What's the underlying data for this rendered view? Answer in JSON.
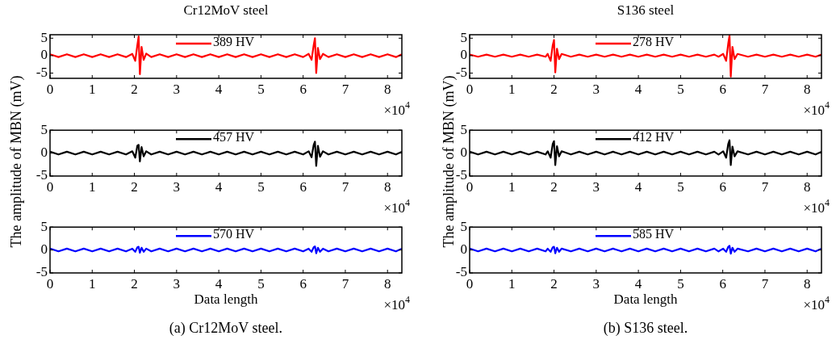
{
  "chart_data": [
    {
      "type": "line",
      "title": "Cr12MoV steel",
      "x": [
        0,
        0.2,
        0.4,
        0.6,
        0.8,
        1,
        1.2,
        1.4,
        1.6,
        1.8,
        1.95,
        2.02,
        2.07,
        2.1,
        2.13,
        2.17,
        2.22,
        2.28,
        2.4,
        2.6,
        2.8,
        3,
        3.2,
        3.4,
        3.6,
        3.8,
        4,
        4.2,
        4.4,
        4.6,
        4.8,
        5,
        5.2,
        5.4,
        5.6,
        5.8,
        6,
        6.13,
        6.2,
        6.25,
        6.28,
        6.31,
        6.35,
        6.4,
        6.47,
        6.6,
        6.8,
        7,
        7.2,
        7.4,
        7.6,
        7.8,
        8,
        8.2,
        8.34
      ],
      "xlim": [
        0,
        8.34
      ],
      "xticks": [
        0,
        1,
        2,
        3,
        4,
        5,
        6,
        7,
        8
      ],
      "ylim": [
        -6.5,
        6
      ],
      "yticks": [
        -5,
        0,
        5
      ],
      "legend": "top",
      "series": [
        {
          "name": "389 HV",
          "color": "#ff0000",
          "values": [
            0.4,
            -0.4,
            0.4,
            -0.4,
            0.4,
            -0.4,
            0.4,
            -0.4,
            0.4,
            -0.4,
            0.5,
            -1.5,
            3,
            5.5,
            -5.3,
            2.5,
            -1.2,
            0.6,
            -0.4,
            0.4,
            -0.4,
            0.4,
            -0.4,
            0.4,
            -0.4,
            0.4,
            -0.4,
            0.4,
            -0.4,
            0.4,
            -0.4,
            0.4,
            -0.4,
            0.4,
            -0.4,
            0.4,
            -0.4,
            0.5,
            -1.2,
            3,
            5,
            -5,
            2.2,
            -1,
            0.5,
            -0.4,
            0.4,
            -0.4,
            0.4,
            -0.4,
            0.4,
            -0.4,
            0.4,
            -0.4,
            0.4
          ]
        }
      ],
      "annotations": [
        "×10$^{4}$"
      ]
    },
    {
      "type": "line",
      "ylabel": "The amplitude of MBN (mV)",
      "x": [
        0,
        0.2,
        0.4,
        0.6,
        0.8,
        1,
        1.2,
        1.4,
        1.6,
        1.8,
        1.95,
        2.02,
        2.07,
        2.1,
        2.13,
        2.17,
        2.22,
        2.28,
        2.4,
        2.6,
        2.8,
        3,
        3.2,
        3.4,
        3.6,
        3.8,
        4,
        4.2,
        4.4,
        4.6,
        4.8,
        5,
        5.2,
        5.4,
        5.6,
        5.8,
        6,
        6.13,
        6.2,
        6.25,
        6.28,
        6.31,
        6.35,
        6.4,
        6.47,
        6.6,
        6.8,
        7,
        7.2,
        7.4,
        7.6,
        7.8,
        8,
        8.2,
        8.34
      ],
      "xlim": [
        0,
        8.34
      ],
      "xticks": [
        0,
        1,
        2,
        3,
        4,
        5,
        6,
        7,
        8
      ],
      "ylim": [
        -5,
        5
      ],
      "yticks": [
        -5,
        0,
        5
      ],
      "legend": "top",
      "series": [
        {
          "name": "457 HV",
          "color": "#000000",
          "values": [
            0.3,
            -0.3,
            0.3,
            -0.3,
            0.3,
            -0.3,
            0.3,
            -0.3,
            0.3,
            -0.3,
            0.4,
            -1,
            1.6,
            1.8,
            -1.8,
            1.3,
            -0.7,
            0.4,
            -0.3,
            0.3,
            -0.3,
            0.3,
            -0.3,
            0.3,
            -0.3,
            0.3,
            -0.3,
            0.3,
            -0.3,
            0.3,
            -0.3,
            0.3,
            -0.3,
            0.3,
            -0.3,
            0.3,
            -0.3,
            0.4,
            -0.9,
            1.8,
            2.5,
            -2.8,
            1.6,
            -0.8,
            0.4,
            -0.3,
            0.3,
            -0.3,
            0.3,
            -0.3,
            0.3,
            -0.3,
            0.3,
            -0.3,
            0.3
          ]
        }
      ],
      "annotations": [
        "×10$^{4}$"
      ]
    },
    {
      "type": "line",
      "xlabel": "Data length",
      "x": [
        0,
        0.2,
        0.4,
        0.6,
        0.8,
        1,
        1.2,
        1.4,
        1.6,
        1.8,
        1.95,
        2.02,
        2.07,
        2.1,
        2.13,
        2.17,
        2.22,
        2.28,
        2.4,
        2.6,
        2.8,
        3,
        3.2,
        3.4,
        3.6,
        3.8,
        4,
        4.2,
        4.4,
        4.6,
        4.8,
        5,
        5.2,
        5.4,
        5.6,
        5.8,
        6,
        6.13,
        6.2,
        6.25,
        6.28,
        6.31,
        6.35,
        6.4,
        6.47,
        6.6,
        6.8,
        7,
        7.2,
        7.4,
        7.6,
        7.8,
        8,
        8.2,
        8.34
      ],
      "xlim": [
        0,
        8.34
      ],
      "xticks": [
        0,
        1,
        2,
        3,
        4,
        5,
        6,
        7,
        8
      ],
      "ylim": [
        -5,
        5
      ],
      "yticks": [
        -5,
        0,
        5
      ],
      "legend": "top",
      "series": [
        {
          "name": "570 HV",
          "color": "#0000ff",
          "values": [
            0.3,
            -0.3,
            0.3,
            -0.3,
            0.3,
            -0.3,
            0.3,
            -0.3,
            0.3,
            -0.3,
            0.3,
            -0.4,
            0.6,
            0.7,
            -0.6,
            0.5,
            -0.4,
            0.3,
            -0.3,
            0.3,
            -0.3,
            0.3,
            -0.3,
            0.3,
            -0.3,
            0.3,
            -0.3,
            0.3,
            -0.3,
            0.3,
            -0.3,
            0.3,
            -0.3,
            0.3,
            -0.3,
            0.3,
            -0.3,
            0.3,
            -0.4,
            0.6,
            0.8,
            -0.7,
            0.5,
            -0.4,
            0.3,
            -0.3,
            0.3,
            -0.3,
            0.3,
            -0.3,
            0.3,
            -0.3,
            0.3,
            -0.3,
            0.3
          ]
        }
      ],
      "annotations": [
        "×10$^{4}$",
        "(a) Cr12MoV steel."
      ]
    },
    {
      "type": "line",
      "title": "S136 steel",
      "x": [
        0,
        0.2,
        0.4,
        0.6,
        0.8,
        1,
        1.2,
        1.4,
        1.6,
        1.8,
        1.85,
        1.92,
        1.97,
        2,
        2.03,
        2.07,
        2.12,
        2.18,
        2.4,
        2.6,
        2.8,
        3,
        3.2,
        3.4,
        3.6,
        3.8,
        4,
        4.2,
        4.4,
        4.6,
        4.8,
        5,
        5.2,
        5.4,
        5.6,
        5.8,
        5.9,
        6.01,
        6.08,
        6.13,
        6.16,
        6.19,
        6.23,
        6.28,
        6.35,
        6.6,
        6.8,
        7,
        7.2,
        7.4,
        7.6,
        7.8,
        8,
        8.2,
        8.34
      ],
      "xlim": [
        0,
        8.34
      ],
      "xticks": [
        0,
        1,
        2,
        3,
        4,
        5,
        6,
        7,
        8
      ],
      "ylim": [
        -6.5,
        6
      ],
      "yticks": [
        -5,
        0,
        5
      ],
      "legend": "top",
      "series": [
        {
          "name": "278 HV",
          "color": "#ff0000",
          "values": [
            0.3,
            -0.3,
            0.3,
            -0.3,
            0.3,
            -0.3,
            0.3,
            -0.3,
            0.3,
            -0.3,
            0.5,
            -1.5,
            3,
            4.5,
            -4.8,
            2,
            -1,
            0.5,
            -0.3,
            0.3,
            -0.3,
            0.3,
            -0.3,
            0.3,
            -0.3,
            0.3,
            -0.3,
            0.3,
            -0.3,
            0.3,
            -0.3,
            0.3,
            -0.3,
            0.3,
            -0.3,
            0.3,
            -0.3,
            0.5,
            -1.5,
            3.5,
            5.8,
            -6,
            2.5,
            -1,
            0.5,
            -0.3,
            0.3,
            -0.3,
            0.3,
            -0.3,
            0.3,
            -0.3,
            0.3,
            -0.3,
            0.3
          ]
        }
      ],
      "annotations": [
        "×10$^{4}$"
      ]
    },
    {
      "type": "line",
      "ylabel": "The amplitude of MBN (mV)",
      "x": [
        0,
        0.2,
        0.4,
        0.6,
        0.8,
        1,
        1.2,
        1.4,
        1.6,
        1.8,
        1.85,
        1.92,
        1.97,
        2,
        2.03,
        2.07,
        2.12,
        2.18,
        2.4,
        2.6,
        2.8,
        3,
        3.2,
        3.4,
        3.6,
        3.8,
        4,
        4.2,
        4.4,
        4.6,
        4.8,
        5,
        5.2,
        5.4,
        5.6,
        5.8,
        5.9,
        6.01,
        6.08,
        6.13,
        6.16,
        6.19,
        6.23,
        6.28,
        6.35,
        6.6,
        6.8,
        7,
        7.2,
        7.4,
        7.6,
        7.8,
        8,
        8.2,
        8.34
      ],
      "xlim": [
        0,
        8.34
      ],
      "xticks": [
        0,
        1,
        2,
        3,
        4,
        5,
        6,
        7,
        8
      ],
      "ylim": [
        -5,
        5
      ],
      "yticks": [
        -5,
        0,
        5
      ],
      "legend": "top",
      "series": [
        {
          "name": "412 HV",
          "color": "#000000",
          "values": [
            0.3,
            -0.3,
            0.3,
            -0.3,
            0.3,
            -0.3,
            0.3,
            -0.3,
            0.3,
            -0.3,
            0.4,
            -1,
            2,
            2.6,
            -2.6,
            1.5,
            -0.7,
            0.4,
            -0.3,
            0.3,
            -0.3,
            0.3,
            -0.3,
            0.3,
            -0.3,
            0.3,
            -0.3,
            0.3,
            -0.3,
            0.3,
            -0.3,
            0.3,
            -0.3,
            0.3,
            -0.3,
            0.3,
            -0.3,
            0.4,
            -1,
            2,
            2.8,
            -2.6,
            1.4,
            -0.7,
            0.4,
            -0.3,
            0.3,
            -0.3,
            0.3,
            -0.3,
            0.3,
            -0.3,
            0.3,
            -0.3,
            0.3
          ]
        }
      ],
      "annotations": [
        "×10$^{4}$"
      ]
    },
    {
      "type": "line",
      "xlabel": "Data length",
      "x": [
        0,
        0.2,
        0.4,
        0.6,
        0.8,
        1,
        1.2,
        1.4,
        1.6,
        1.8,
        1.85,
        1.92,
        1.97,
        2,
        2.03,
        2.07,
        2.12,
        2.18,
        2.4,
        2.6,
        2.8,
        3,
        3.2,
        3.4,
        3.6,
        3.8,
        4,
        4.2,
        4.4,
        4.6,
        4.8,
        5,
        5.2,
        5.4,
        5.6,
        5.8,
        5.9,
        6.01,
        6.08,
        6.13,
        6.16,
        6.19,
        6.23,
        6.28,
        6.35,
        6.6,
        6.8,
        7,
        7.2,
        7.4,
        7.6,
        7.8,
        8,
        8.2,
        8.34
      ],
      "xlim": [
        0,
        8.34
      ],
      "xticks": [
        0,
        1,
        2,
        3,
        4,
        5,
        6,
        7,
        8
      ],
      "ylim": [
        -5,
        5
      ],
      "yticks": [
        -5,
        0,
        5
      ],
      "legend": "top",
      "series": [
        {
          "name": "585 HV",
          "color": "#0000ff",
          "values": [
            0.3,
            -0.3,
            0.3,
            -0.3,
            0.3,
            -0.3,
            0.3,
            -0.3,
            0.3,
            -0.3,
            0.3,
            -0.4,
            0.6,
            0.7,
            -0.7,
            0.5,
            -0.4,
            0.3,
            -0.3,
            0.3,
            -0.3,
            0.3,
            -0.3,
            0.3,
            -0.3,
            0.3,
            -0.3,
            0.3,
            -0.3,
            0.3,
            -0.3,
            0.3,
            -0.3,
            0.3,
            -0.3,
            0.3,
            -0.3,
            0.3,
            -0.4,
            0.7,
            0.9,
            -0.8,
            0.5,
            -0.4,
            0.3,
            -0.3,
            0.3,
            -0.3,
            0.3,
            -0.3,
            0.3,
            -0.3,
            0.3,
            -0.3,
            0.3
          ]
        }
      ],
      "annotations": [
        "×10$^{4}$",
        "(b) S136 steel."
      ]
    }
  ]
}
